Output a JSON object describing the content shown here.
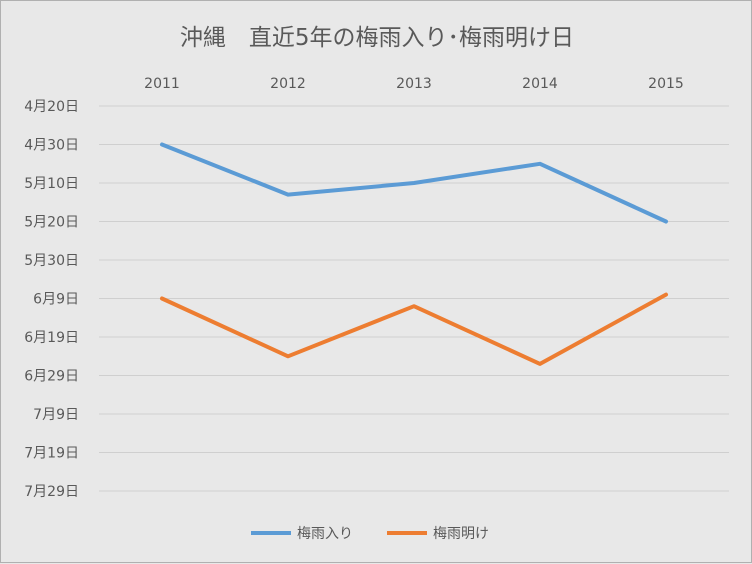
{
  "chart_data": {
    "type": "line",
    "title": "沖縄　直近5年の梅雨入り･梅雨明け日",
    "x": [
      "2011",
      "2012",
      "2013",
      "2014",
      "2015"
    ],
    "y_axis_reversed": true,
    "y_ticks": [
      "4月20日",
      "4月30日",
      "5月10日",
      "5月20日",
      "5月30日",
      "6月9日",
      "6月19日",
      "6月29日",
      "7月9日",
      "7月19日",
      "7月29日"
    ],
    "ylim": [
      "4月20日",
      "7月29日"
    ],
    "grid": true,
    "legend_position": "bottom",
    "series": [
      {
        "name": "梅雨入り",
        "color": "#5b9bd5",
        "values": [
          "4月30日",
          "5月13日",
          "5月10日",
          "5月5日",
          "5月20日"
        ]
      },
      {
        "name": "梅雨明け",
        "color": "#ed7d31",
        "values": [
          "6月9日",
          "6月24日",
          "6月11日",
          "6月26日",
          "6月8日"
        ]
      }
    ]
  }
}
